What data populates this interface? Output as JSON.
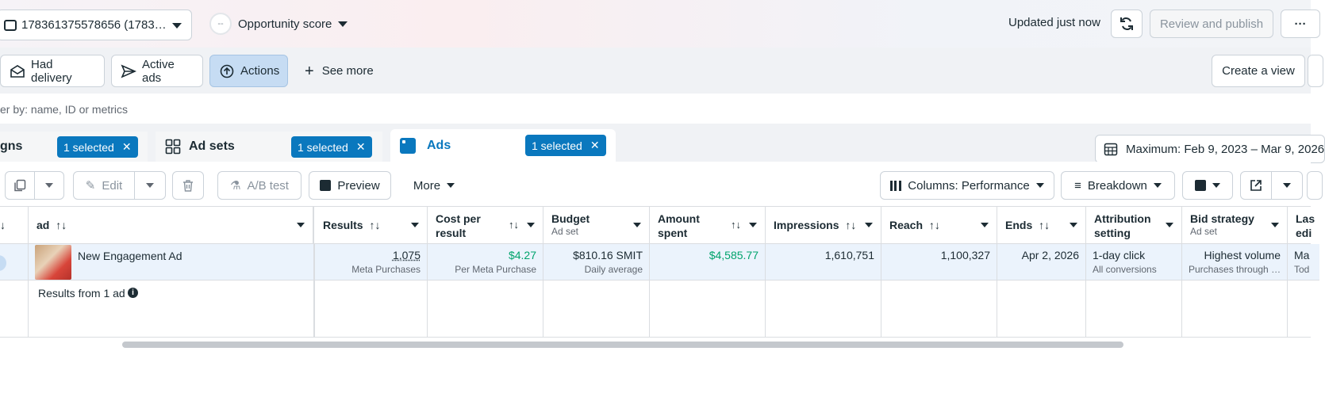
{
  "topbar": {
    "account_label": "178361375578656 (1783…",
    "opportunity_label": "Opportunity score",
    "opportunity_dial": "--",
    "updated_text": "Updated just now",
    "review_publish_label": "Review and publish",
    "more_label": "···"
  },
  "filters": {
    "had_delivery": "Had delivery",
    "active_ads": "Active ads",
    "actions": "Actions",
    "see_more": "See more",
    "create_view": "Create a view"
  },
  "search": {
    "placeholder": "er by: name, ID or metrics"
  },
  "tabs": {
    "campaigns_label": "gns",
    "campaigns_selected": "1 selected",
    "adsets_label": "Ad sets",
    "adsets_selected": "1 selected",
    "ads_label": "Ads",
    "ads_selected": "1 selected"
  },
  "date_range": "Maximum: Feb 9, 2023 – Mar 9, 2026",
  "toolbar": {
    "edit": "Edit",
    "ab_test": "A/B test",
    "preview": "Preview",
    "more": "More",
    "columns": "Columns: Performance",
    "breakdown": "Breakdown"
  },
  "table": {
    "headers": {
      "ad": "ad",
      "results": "Results",
      "cost_per_result": "Cost per result",
      "budget": "Budget",
      "budget_sub": "Ad set",
      "amount_spent": "Amount spent",
      "impressions": "Impressions",
      "reach": "Reach",
      "ends": "Ends",
      "attribution": "Attribution setting",
      "bid_strategy": "Bid strategy",
      "bid_strategy_sub": "Ad set",
      "last_edit": "Las edi"
    },
    "row": {
      "ad_name": "New Engagement Ad",
      "results": "1,075",
      "results_sub": "Meta Purchases",
      "cost_per_result": "$4.27",
      "cost_per_result_sub": "Per Meta Purchase",
      "budget": "$810.16 SMIT",
      "budget_sub": "Daily average",
      "amount_spent": "$4,585.77",
      "impressions": "1,610,751",
      "reach": "1,100,327",
      "ends": "Apr 2, 2026",
      "attribution": "1-day click",
      "attribution_sub": "All conversions",
      "bid_strategy": "Highest volume",
      "bid_strategy_sub": "Purchases through …",
      "last_edit": "Ma",
      "last_edit_sub": "Tod"
    },
    "summary": {
      "label": "Results from 1 ad"
    }
  },
  "colors": {
    "accent": "#0a78be",
    "green": "#00a36c",
    "row_highlight": "#ebf3fc"
  }
}
